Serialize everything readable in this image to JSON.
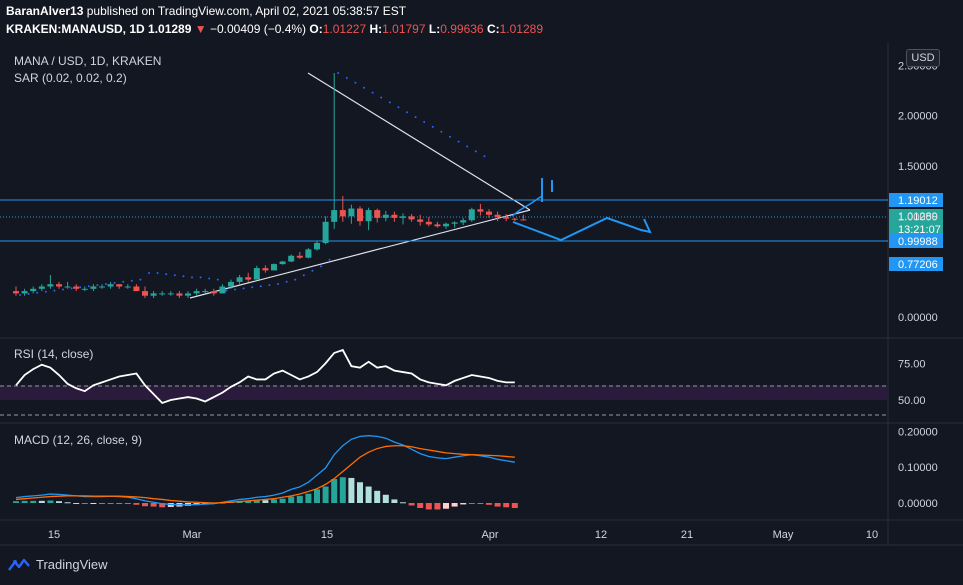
{
  "header": {
    "line1": {
      "author": "BaranAlver13",
      "text": "published on TradingView.com, April 02, 2021 05:38:57 EST"
    },
    "line2": {
      "symbol": "KRAKEN:MANAUSD, 1D",
      "last": "1.01289",
      "arrow": "▼",
      "change": "−0.00409 (−0.4%)",
      "o_label": "O:",
      "o": "1.01227",
      "h_label": "H:",
      "h": "1.01797",
      "l_label": "L:",
      "l": "0.99636",
      "c_label": "C:",
      "c": "1.01289"
    }
  },
  "currency_button": "USD",
  "footer": {
    "brand": "TradingView"
  },
  "colors": {
    "background": "#131722",
    "up": "#26a69a",
    "down": "#ef5350",
    "sar": "#2962ff",
    "level_line": "#2196f3",
    "rsi_line": "#ffffff",
    "rsi_band": "#2a1b3d",
    "macd_line": "#2196f3",
    "signal_line": "#ff6d00",
    "grid": "#1e222d"
  },
  "chart_data": [
    {
      "type": "candlestick",
      "title": "MANA / USD, 1D, KRAKEN",
      "indicator_label": "SAR (0.02, 0.02, 0.2)",
      "y_scale": "log",
      "y_ticks": [
        2.5,
        2.0,
        1.5,
        1.0,
        0.0
      ],
      "y_tick_labels": [
        "2.50000",
        "2.00000",
        "1.50000",
        "1.00000",
        "0.00000"
      ],
      "x_tick_labels": [
        "15",
        "Mar",
        "15",
        "Apr",
        "12",
        "21",
        "May",
        "10"
      ],
      "candles": [
        {
          "o": 0.19,
          "h": 0.21,
          "l": 0.17,
          "c": 0.18
        },
        {
          "o": 0.18,
          "h": 0.2,
          "l": 0.17,
          "c": 0.19
        },
        {
          "o": 0.19,
          "h": 0.21,
          "l": 0.18,
          "c": 0.2
        },
        {
          "o": 0.2,
          "h": 0.22,
          "l": 0.19,
          "c": 0.21
        },
        {
          "o": 0.21,
          "h": 0.26,
          "l": 0.2,
          "c": 0.22
        },
        {
          "o": 0.22,
          "h": 0.23,
          "l": 0.2,
          "c": 0.21
        },
        {
          "o": 0.21,
          "h": 0.23,
          "l": 0.2,
          "c": 0.21
        },
        {
          "o": 0.21,
          "h": 0.22,
          "l": 0.19,
          "c": 0.2
        },
        {
          "o": 0.2,
          "h": 0.21,
          "l": 0.19,
          "c": 0.2
        },
        {
          "o": 0.2,
          "h": 0.22,
          "l": 0.19,
          "c": 0.21
        },
        {
          "o": 0.21,
          "h": 0.22,
          "l": 0.2,
          "c": 0.21
        },
        {
          "o": 0.21,
          "h": 0.23,
          "l": 0.2,
          "c": 0.22
        },
        {
          "o": 0.22,
          "h": 0.22,
          "l": 0.2,
          "c": 0.21
        },
        {
          "o": 0.21,
          "h": 0.22,
          "l": 0.2,
          "c": 0.21
        },
        {
          "o": 0.21,
          "h": 0.22,
          "l": 0.19,
          "c": 0.19
        },
        {
          "o": 0.19,
          "h": 0.21,
          "l": 0.16,
          "c": 0.17
        },
        {
          "o": 0.17,
          "h": 0.19,
          "l": 0.16,
          "c": 0.18
        },
        {
          "o": 0.18,
          "h": 0.19,
          "l": 0.17,
          "c": 0.18
        },
        {
          "o": 0.18,
          "h": 0.19,
          "l": 0.17,
          "c": 0.18
        },
        {
          "o": 0.18,
          "h": 0.19,
          "l": 0.16,
          "c": 0.17
        },
        {
          "o": 0.17,
          "h": 0.19,
          "l": 0.16,
          "c": 0.18
        },
        {
          "o": 0.18,
          "h": 0.2,
          "l": 0.17,
          "c": 0.19
        },
        {
          "o": 0.19,
          "h": 0.2,
          "l": 0.18,
          "c": 0.19
        },
        {
          "o": 0.19,
          "h": 0.2,
          "l": 0.17,
          "c": 0.18
        },
        {
          "o": 0.18,
          "h": 0.22,
          "l": 0.18,
          "c": 0.21
        },
        {
          "o": 0.21,
          "h": 0.24,
          "l": 0.2,
          "c": 0.23
        },
        {
          "o": 0.23,
          "h": 0.26,
          "l": 0.22,
          "c": 0.25
        },
        {
          "o": 0.25,
          "h": 0.27,
          "l": 0.23,
          "c": 0.24
        },
        {
          "o": 0.24,
          "h": 0.3,
          "l": 0.24,
          "c": 0.29
        },
        {
          "o": 0.29,
          "h": 0.31,
          "l": 0.27,
          "c": 0.28
        },
        {
          "o": 0.28,
          "h": 0.34,
          "l": 0.28,
          "c": 0.33
        },
        {
          "o": 0.33,
          "h": 0.38,
          "l": 0.32,
          "c": 0.37
        },
        {
          "o": 0.37,
          "h": 0.48,
          "l": 0.36,
          "c": 0.46
        },
        {
          "o": 0.46,
          "h": 0.52,
          "l": 0.41,
          "c": 0.43
        },
        {
          "o": 0.43,
          "h": 0.58,
          "l": 0.42,
          "c": 0.56
        },
        {
          "o": 0.56,
          "h": 0.7,
          "l": 0.54,
          "c": 0.66
        },
        {
          "o": 0.66,
          "h": 1.06,
          "l": 0.64,
          "c": 0.99
        },
        {
          "o": 0.99,
          "h": 2.45,
          "l": 0.88,
          "c": 1.14
        },
        {
          "o": 1.14,
          "h": 1.32,
          "l": 0.99,
          "c": 1.06
        },
        {
          "o": 1.06,
          "h": 1.21,
          "l": 0.96,
          "c": 1.16
        },
        {
          "o": 1.16,
          "h": 1.19,
          "l": 0.93,
          "c": 1.0
        },
        {
          "o": 1.0,
          "h": 1.17,
          "l": 0.86,
          "c": 1.14
        },
        {
          "o": 1.14,
          "h": 1.16,
          "l": 0.98,
          "c": 1.04
        },
        {
          "o": 1.04,
          "h": 1.13,
          "l": 1.0,
          "c": 1.08
        },
        {
          "o": 1.08,
          "h": 1.12,
          "l": 0.99,
          "c": 1.04
        },
        {
          "o": 1.04,
          "h": 1.1,
          "l": 0.95,
          "c": 1.06
        },
        {
          "o": 1.06,
          "h": 1.09,
          "l": 0.99,
          "c": 1.02
        },
        {
          "o": 1.02,
          "h": 1.08,
          "l": 0.93,
          "c": 0.99
        },
        {
          "o": 0.99,
          "h": 1.05,
          "l": 0.92,
          "c": 0.95
        },
        {
          "o": 0.95,
          "h": 0.99,
          "l": 0.9,
          "c": 0.92
        },
        {
          "o": 0.92,
          "h": 0.98,
          "l": 0.88,
          "c": 0.96
        },
        {
          "o": 0.96,
          "h": 1.0,
          "l": 0.9,
          "c": 0.98
        },
        {
          "o": 0.98,
          "h": 1.04,
          "l": 0.94,
          "c": 1.01
        },
        {
          "o": 1.01,
          "h": 1.17,
          "l": 0.99,
          "c": 1.15
        },
        {
          "o": 1.15,
          "h": 1.22,
          "l": 1.07,
          "c": 1.12
        },
        {
          "o": 1.12,
          "h": 1.15,
          "l": 1.04,
          "c": 1.08
        },
        {
          "o": 1.08,
          "h": 1.12,
          "l": 1.0,
          "c": 1.05
        },
        {
          "o": 1.05,
          "h": 1.09,
          "l": 1.0,
          "c": 1.03
        },
        {
          "o": 1.03,
          "h": 1.04,
          "l": 1.0,
          "c": 1.02
        },
        {
          "o": 1.02,
          "h": 1.08,
          "l": 1.01,
          "c": 1.0129
        }
      ],
      "sar": [
        0.14,
        0.145,
        0.15,
        0.155,
        0.16,
        0.165,
        0.17,
        0.175,
        0.18,
        0.185,
        0.19,
        0.195,
        0.2,
        0.205,
        0.21,
        0.24,
        0.24,
        0.235,
        0.23,
        0.225,
        0.22,
        0.22,
        0.215,
        0.21,
        0.16,
        0.165,
        0.17,
        0.175,
        0.18,
        0.185,
        0.19,
        0.2,
        0.21,
        0.23,
        0.25,
        0.27,
        0.3,
        2.45,
        2.4,
        2.34,
        2.28,
        2.22,
        2.16,
        2.1,
        2.05,
        2.0,
        1.95,
        1.9,
        1.85,
        1.8,
        1.76,
        1.72,
        1.68,
        1.64,
        1.6
      ],
      "horizontal_levels": [
        {
          "value": 1.19012,
          "label": "1.19012"
        },
        {
          "value": 1.01289,
          "label": "1.01289",
          "sublabel": "13:21:07",
          "current": true
        },
        {
          "value": 0.99988,
          "label": "0.99988"
        },
        {
          "value": 0.77206,
          "label": "0.77206"
        }
      ]
    },
    {
      "type": "line",
      "title": "RSI (14, close)",
      "y_ticks": [
        75,
        50
      ],
      "y_tick_labels": [
        "75.00",
        "50.00"
      ],
      "band": [
        30,
        70
      ],
      "values": [
        60,
        67,
        71,
        74,
        72,
        67,
        61,
        58,
        56,
        60,
        62,
        64,
        66,
        67,
        68,
        60,
        54,
        48,
        50,
        51,
        52,
        51,
        49,
        52,
        55,
        59,
        62,
        66,
        64,
        64,
        68,
        70,
        67,
        64,
        66,
        69,
        75,
        82,
        84,
        73,
        72,
        76,
        72,
        73,
        70,
        69,
        68,
        64,
        62,
        61,
        60,
        63,
        65,
        67,
        66,
        65,
        63,
        62,
        62
      ]
    },
    {
      "type": "bar+line",
      "title": "MACD (12, 26, close, 9)",
      "y_ticks": [
        0.2,
        0.1,
        0.0
      ],
      "y_tick_labels": [
        "0.20000",
        "0.10000",
        "0.00000"
      ],
      "macd": [
        0.015,
        0.018,
        0.02,
        0.022,
        0.025,
        0.024,
        0.022,
        0.02,
        0.018,
        0.018,
        0.018,
        0.019,
        0.018,
        0.016,
        0.012,
        0.006,
        0.002,
        -0.002,
        -0.004,
        -0.005,
        -0.005,
        -0.004,
        -0.003,
        -0.002,
        0.002,
        0.006,
        0.01,
        0.012,
        0.016,
        0.018,
        0.022,
        0.028,
        0.038,
        0.045,
        0.058,
        0.078,
        0.098,
        0.135,
        0.16,
        0.178,
        0.186,
        0.188,
        0.186,
        0.181,
        0.17,
        0.162,
        0.15,
        0.138,
        0.13,
        0.126,
        0.124,
        0.128,
        0.132,
        0.135,
        0.132,
        0.128,
        0.122,
        0.118,
        0.114
      ],
      "signal": [
        0.01,
        0.012,
        0.014,
        0.016,
        0.018,
        0.019,
        0.02,
        0.02,
        0.02,
        0.019,
        0.019,
        0.019,
        0.019,
        0.018,
        0.017,
        0.015,
        0.012,
        0.01,
        0.007,
        0.005,
        0.003,
        0.002,
        0.001,
        0.0,
        0.001,
        0.002,
        0.004,
        0.006,
        0.008,
        0.01,
        0.012,
        0.016,
        0.02,
        0.025,
        0.032,
        0.04,
        0.052,
        0.068,
        0.088,
        0.108,
        0.128,
        0.142,
        0.152,
        0.158,
        0.16,
        0.16,
        0.157,
        0.152,
        0.148,
        0.144,
        0.14,
        0.138,
        0.136,
        0.135,
        0.134,
        0.133,
        0.132,
        0.13,
        0.128
      ]
    }
  ]
}
